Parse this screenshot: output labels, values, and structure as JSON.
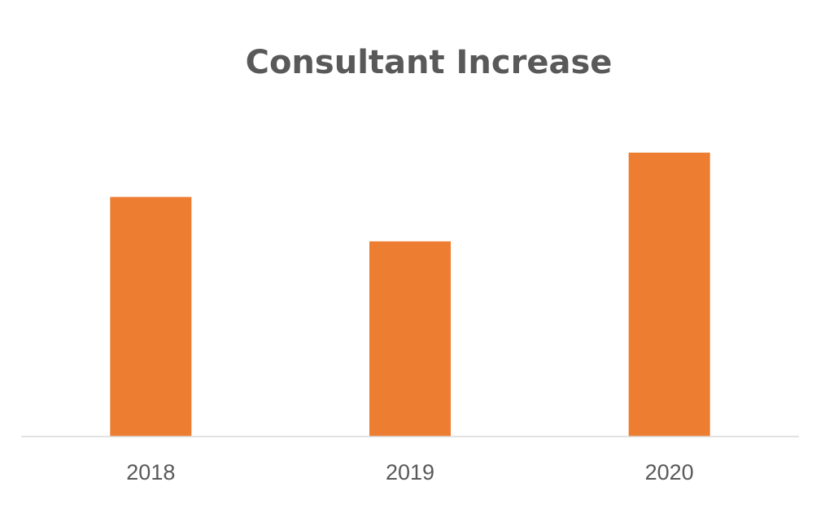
{
  "chart_data": {
    "type": "bar",
    "title": "Consultant Increase",
    "xlabel": "",
    "ylabel": "",
    "categories": [
      "2018",
      "2019",
      "2020"
    ],
    "values": [
      27,
      22,
      32
    ],
    "ylim": [
      0,
      35
    ],
    "grid": false,
    "legend": "none",
    "bar_color": "#ED7D31",
    "axis_color": "#D9D9D9",
    "text_color": "#595959"
  }
}
